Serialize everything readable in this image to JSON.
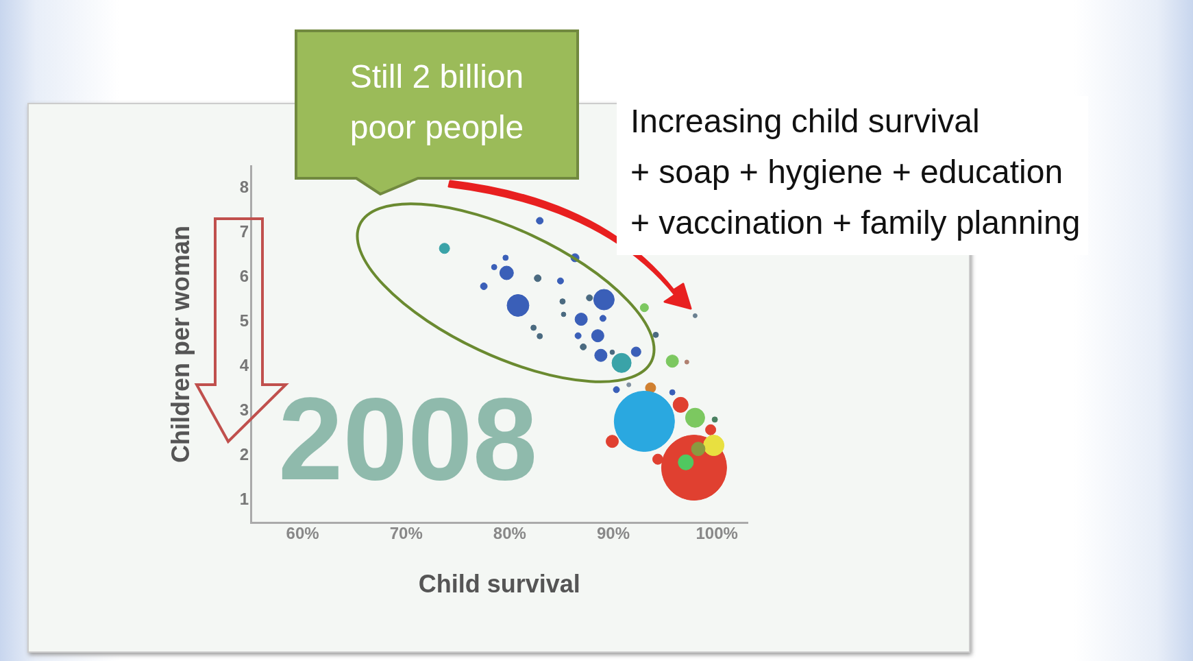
{
  "chart_data": {
    "type": "bubble",
    "xlabel": "Child survival",
    "ylabel": "Children per woman",
    "annotations": [
      "Still 2 billion poor people",
      "Increasing child survival\n+ soap + hygiene + education\n+ vaccination + family planning",
      "2008"
    ],
    "xlim": [
      55,
      103
    ],
    "xticks": [
      {
        "value": 60,
        "label": "60%"
      },
      {
        "value": 70,
        "label": "70%"
      },
      {
        "value": 80,
        "label": "80%"
      },
      {
        "value": 90,
        "label": "90%"
      },
      {
        "value": 100,
        "label": "100%"
      }
    ],
    "ylim": [
      0.5,
      8.5
    ],
    "yticks": [
      1,
      2,
      3,
      4,
      5,
      6,
      7,
      8
    ],
    "x": [
      73.7,
      79.6,
      78.5,
      79.7,
      77.5,
      82.7,
      84.9,
      80.8,
      82.9,
      86.3,
      85.1,
      85.2,
      86.9,
      89.1,
      87.7,
      89.0,
      88.5,
      82.3,
      82.9,
      86.6,
      87.1,
      88.8,
      90.8,
      92.2,
      89.9,
      93.0,
      94.1,
      97.9,
      95.7,
      97.1,
      90.3,
      91.5,
      93.6,
      95.7,
      93.0,
      89.9,
      96.5,
      97.9,
      99.4,
      99.8,
      97.8,
      97.0,
      99.7,
      94.3,
      98.2
    ],
    "values": [
      6.65,
      6.44,
      6.23,
      6.1,
      5.8,
      5.98,
      5.92,
      5.37,
      7.27,
      6.44,
      5.46,
      5.17,
      5.06,
      5.5,
      5.54,
      5.08,
      4.69,
      4.87,
      4.68,
      4.69,
      4.44,
      4.25,
      4.08,
      4.33,
      4.32,
      5.32,
      4.71,
      5.14,
      4.12,
      4.1,
      3.48,
      3.59,
      3.52,
      3.42,
      2.77,
      2.32,
      3.14,
      2.85,
      2.58,
      2.81,
      1.73,
      1.85,
      2.23,
      1.92,
      2.15
    ],
    "sizes": [
      0.025,
      0.007,
      0.007,
      0.044,
      0.011,
      0.011,
      0.009,
      0.113,
      0.011,
      0.016,
      0.007,
      0.005,
      0.036,
      0.1,
      0.009,
      0.009,
      0.036,
      0.007,
      0.007,
      0.009,
      0.009,
      0.036,
      0.087,
      0.022,
      0.005,
      0.016,
      0.007,
      0.004,
      0.036,
      0.004,
      0.009,
      0.004,
      0.025,
      0.007,
      0.858,
      0.036,
      0.054,
      0.087,
      0.025,
      0.007,
      1,
      0.054,
      0.1,
      0.025,
      0.044
    ],
    "colors": [
      "#3aa3a8",
      "#3a5fb8",
      "#3a5fb8",
      "#3a5fb8",
      "#3a5fb8",
      "#4a6a80",
      "#3a5fb8",
      "#3a5fb8",
      "#3a5fb8",
      "#3a5fb8",
      "#4a6a80",
      "#4a6a80",
      "#3a5fb8",
      "#3a5fb8",
      "#4a6a80",
      "#3a5fb8",
      "#3a5fb8",
      "#4a6a80",
      "#4a6a80",
      "#3a5fb8",
      "#4a6a80",
      "#3a5fb8",
      "#3aa3a8",
      "#3a5fb8",
      "#4a6a80",
      "#7cc860",
      "#4a6a80",
      "#6a8090",
      "#7cc860",
      "#b08070",
      "#3a5fb8",
      "#8090a0",
      "#d08030",
      "#3a5fb8",
      "#2aa8e0",
      "#e04030",
      "#e04030",
      "#7cc860",
      "#e04030",
      "#4a8060",
      "#e04030",
      "#50c860",
      "#e8e040",
      "#e04030",
      "#8a9a40"
    ]
  }
}
